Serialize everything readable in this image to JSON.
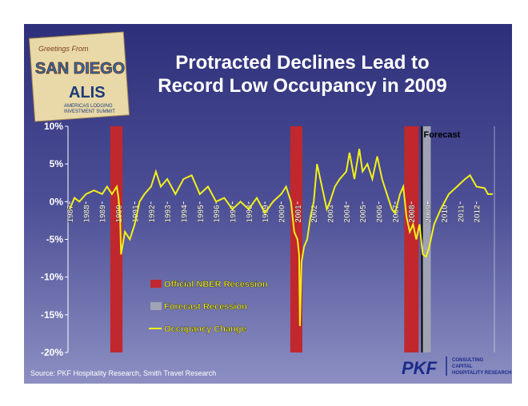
{
  "slide": {
    "title_lines": [
      "Protracted Declines Lead to",
      "Record Low Occupancy in 2009"
    ],
    "source": "Source: PKF Hospitality Research, Smith Travel Research",
    "logo": {
      "greeting": "Greetings From",
      "city": "SAN DIEGO",
      "brand": "ALIS",
      "line1": "AMERICAS LODGING",
      "line2": "INVESTMENT SUMMIT"
    },
    "pkf": {
      "name": "PKF",
      "lines": [
        "CONSULTING",
        "CAPITAL",
        "HOSPITALITY RESEARCH"
      ]
    }
  },
  "chart_data": {
    "type": "line",
    "xlim": [
      1986.9,
      2013.1
    ],
    "xticks": [
      1987,
      1988,
      1989,
      1990,
      1991,
      1992,
      1993,
      1994,
      1995,
      1996,
      1997,
      1998,
      1999,
      2000,
      2001,
      2002,
      2003,
      2004,
      2005,
      2006,
      2007,
      2008,
      2009,
      2010,
      2011,
      2012
    ],
    "ylim": [
      -20,
      10
    ],
    "yticks": [
      {
        "value": 10,
        "label": "10%"
      },
      {
        "value": 5,
        "label": "5%"
      },
      {
        "value": 0,
        "label": "0%"
      },
      {
        "value": -5,
        "label": "-5%"
      },
      {
        "value": -10,
        "label": "-10%"
      },
      {
        "value": -15,
        "label": "-15%"
      },
      {
        "value": -20,
        "label": "-20%"
      }
    ],
    "bands": [
      {
        "name": "Official NBER Recession",
        "color": "#c0282d",
        "ranges": [
          [
            1989.5,
            1990.25
          ],
          [
            2000.56,
            2001.3
          ],
          [
            2007.56,
            2008.45
          ]
        ]
      },
      {
        "name": "Forecast Recession",
        "color": "#a0a3b4",
        "ranges": [
          [
            2008.7,
            2009.19
          ]
        ]
      }
    ],
    "forecast_line": {
      "label": "Forecast",
      "x": 2008.65
    },
    "x": [
      1987.0,
      1987.3,
      1987.6,
      1988.0,
      1988.5,
      1989.0,
      1989.3,
      1989.6,
      1989.9,
      1990.0,
      1990.1,
      1990.16,
      1990.4,
      1990.7,
      1991.0,
      1991.3,
      1991.6,
      1992.0,
      1992.3,
      1992.6,
      1993.0,
      1993.5,
      1994.0,
      1994.5,
      1995.0,
      1995.5,
      1996.0,
      1996.5,
      1997.0,
      1997.5,
      1998.0,
      1998.5,
      1999.0,
      1999.5,
      2000.0,
      2000.3,
      2000.6,
      2000.8,
      2001.0,
      2001.1,
      2001.15,
      2001.25,
      2001.4,
      2001.6,
      2001.8,
      2002.0,
      2002.2,
      2002.5,
      2002.8,
      2003.0,
      2003.3,
      2003.6,
      2004.0,
      2004.2,
      2004.5,
      2004.8,
      2005.0,
      2005.3,
      2005.6,
      2005.9,
      2006.2,
      2006.5,
      2006.8,
      2007.0,
      2007.3,
      2007.5,
      2007.7,
      2007.9,
      2008.1,
      2008.3,
      2008.5,
      2008.7,
      2008.9,
      2009.1,
      2009.4,
      2009.8,
      2010.3,
      2010.8,
      2011.3,
      2011.6,
      2012.0,
      2012.5,
      2012.7,
      2013.0
    ],
    "series": [
      {
        "name": "Occupancy Change",
        "color": "#f2f01a",
        "values": [
          -1,
          0.5,
          0,
          1,
          1.5,
          1,
          2,
          1,
          2,
          0.5,
          -2,
          -7,
          -4,
          -5,
          -3,
          0,
          1,
          2,
          4,
          2,
          3,
          1,
          3,
          3.5,
          1,
          2,
          0,
          0.5,
          -1,
          0,
          -1,
          0.5,
          -1.5,
          0,
          1,
          2,
          0,
          -4,
          -5,
          -7,
          -16.5,
          -8,
          -6,
          -5,
          -2,
          0,
          5,
          2,
          -1,
          0,
          2,
          3,
          4,
          6.5,
          3,
          7,
          4,
          5,
          3,
          6,
          3,
          1,
          -1,
          -1.5,
          1,
          2,
          -2,
          -4,
          -3,
          -5,
          -3,
          -7,
          -7.3,
          -6,
          -3,
          -1,
          1,
          2,
          3,
          3.5,
          2,
          1.8,
          1,
          1
        ]
      }
    ]
  }
}
